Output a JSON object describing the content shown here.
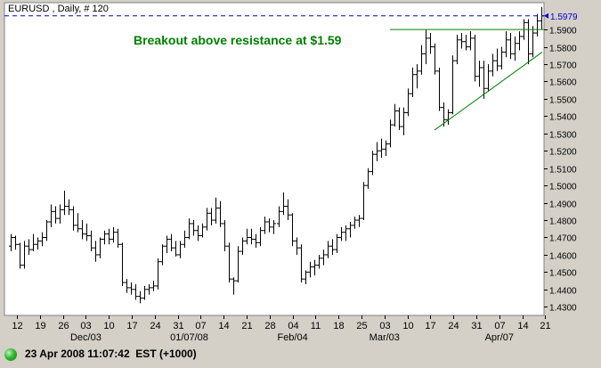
{
  "window_title": "EURUSD , Daily, # 120",
  "status_bar": {
    "text": "23 Apr 2008 11:07:42  EST (+1000)"
  },
  "colors": {
    "bar": "#000000",
    "resistance_line": "#008000",
    "trend_line": "#008000",
    "current_price_line": "#0000cc",
    "annotation": "#008000",
    "background": "#ffffff",
    "frame": "#d4d0c8"
  },
  "chart_data": {
    "type": "bar",
    "style": "ohlc",
    "title": "EURUSD , Daily, # 120",
    "ylim": [
      1.425,
      1.6055
    ],
    "y_ticks": [
      "1.4300",
      "1.4400",
      "1.4500",
      "1.4600",
      "1.4700",
      "1.4800",
      "1.4900",
      "1.5000",
      "1.5100",
      "1.5200",
      "1.5300",
      "1.5400",
      "1.5500",
      "1.5600",
      "1.5700",
      "1.5800",
      "1.5900"
    ],
    "current_price": "1.5979",
    "x_tick_labels": [
      "12",
      "19",
      "26",
      "03",
      "10",
      "17",
      "24",
      "31",
      "07",
      "14",
      "21",
      "28",
      "04",
      "11",
      "18",
      "25",
      "03",
      "10",
      "17",
      "24",
      "31",
      "07",
      "14",
      "21"
    ],
    "x_sub_labels": [
      {
        "label": "Dec/03",
        "tick": 3
      },
      {
        "label": "01/07/08",
        "tick": 7.5
      },
      {
        "label": "Feb/04",
        "tick": 12
      },
      {
        "label": "Mar/03",
        "tick": 16
      },
      {
        "label": "Apr/07",
        "tick": 21
      }
    ],
    "annotation": "Breakout above resistance at $1.59",
    "resistance_level": 1.59,
    "resistance_from_bar": 93,
    "trendline": {
      "from_bar": 95,
      "to_bar": 119,
      "from_price": 1.532,
      "to_price": 1.577
    },
    "ohlc": [
      [
        1.465,
        1.472,
        1.462,
        1.47
      ],
      [
        1.47,
        1.471,
        1.463,
        1.466
      ],
      [
        1.466,
        1.467,
        1.452,
        1.454
      ],
      [
        1.454,
        1.468,
        1.452,
        1.465
      ],
      [
        1.465,
        1.469,
        1.46,
        1.463
      ],
      [
        1.463,
        1.472,
        1.462,
        1.466
      ],
      [
        1.466,
        1.47,
        1.463,
        1.468
      ],
      [
        1.468,
        1.473,
        1.465,
        1.47
      ],
      [
        1.47,
        1.48,
        1.468,
        1.479
      ],
      [
        1.479,
        1.489,
        1.476,
        1.485
      ],
      [
        1.485,
        1.488,
        1.478,
        1.481
      ],
      [
        1.481,
        1.489,
        1.478,
        1.486
      ],
      [
        1.486,
        1.497,
        1.483,
        1.488
      ],
      [
        1.488,
        1.492,
        1.483,
        1.486
      ],
      [
        1.486,
        1.488,
        1.474,
        1.477
      ],
      [
        1.477,
        1.484,
        1.473,
        1.475
      ],
      [
        1.475,
        1.48,
        1.469,
        1.472
      ],
      [
        1.472,
        1.478,
        1.468,
        1.471
      ],
      [
        1.471,
        1.474,
        1.462,
        1.464
      ],
      [
        1.464,
        1.468,
        1.456,
        1.46
      ],
      [
        1.46,
        1.47,
        1.458,
        1.469
      ],
      [
        1.469,
        1.474,
        1.466,
        1.472
      ],
      [
        1.472,
        1.475,
        1.466,
        1.469
      ],
      [
        1.469,
        1.476,
        1.467,
        1.473
      ],
      [
        1.473,
        1.475,
        1.464,
        1.466
      ],
      [
        1.466,
        1.467,
        1.442,
        1.444
      ],
      [
        1.444,
        1.446,
        1.438,
        1.441
      ],
      [
        1.441,
        1.444,
        1.437,
        1.44
      ],
      [
        1.44,
        1.443,
        1.434,
        1.436
      ],
      [
        1.436,
        1.439,
        1.432,
        1.435
      ],
      [
        1.435,
        1.442,
        1.434,
        1.44
      ],
      [
        1.44,
        1.443,
        1.437,
        1.441
      ],
      [
        1.441,
        1.445,
        1.439,
        1.442
      ],
      [
        1.442,
        1.458,
        1.44,
        1.456
      ],
      [
        1.456,
        1.466,
        1.454,
        1.465
      ],
      [
        1.465,
        1.471,
        1.461,
        1.469
      ],
      [
        1.469,
        1.472,
        1.462,
        1.464
      ],
      [
        1.464,
        1.468,
        1.459,
        1.46
      ],
      [
        1.46,
        1.468,
        1.458,
        1.466
      ],
      [
        1.466,
        1.474,
        1.464,
        1.47
      ],
      [
        1.47,
        1.481,
        1.469,
        1.478
      ],
      [
        1.478,
        1.48,
        1.471,
        1.474
      ],
      [
        1.474,
        1.477,
        1.468,
        1.471
      ],
      [
        1.471,
        1.478,
        1.47,
        1.476
      ],
      [
        1.476,
        1.487,
        1.474,
        1.484
      ],
      [
        1.484,
        1.487,
        1.477,
        1.48
      ],
      [
        1.48,
        1.493,
        1.478,
        1.487
      ],
      [
        1.487,
        1.491,
        1.476,
        1.478
      ],
      [
        1.478,
        1.48,
        1.462,
        1.465
      ],
      [
        1.465,
        1.467,
        1.444,
        1.446
      ],
      [
        1.446,
        1.447,
        1.437,
        1.445
      ],
      [
        1.445,
        1.465,
        1.444,
        1.462
      ],
      [
        1.462,
        1.47,
        1.46,
        1.468
      ],
      [
        1.468,
        1.475,
        1.466,
        1.47
      ],
      [
        1.47,
        1.475,
        1.466,
        1.469
      ],
      [
        1.469,
        1.472,
        1.464,
        1.467
      ],
      [
        1.467,
        1.476,
        1.465,
        1.474
      ],
      [
        1.474,
        1.482,
        1.472,
        1.479
      ],
      [
        1.479,
        1.481,
        1.473,
        1.476
      ],
      [
        1.476,
        1.48,
        1.472,
        1.478
      ],
      [
        1.478,
        1.488,
        1.476,
        1.485
      ],
      [
        1.485,
        1.496,
        1.483,
        1.488
      ],
      [
        1.488,
        1.492,
        1.48,
        1.483
      ],
      [
        1.483,
        1.484,
        1.465,
        1.468
      ],
      [
        1.468,
        1.47,
        1.46,
        1.464
      ],
      [
        1.464,
        1.466,
        1.444,
        1.446
      ],
      [
        1.446,
        1.451,
        1.443,
        1.45
      ],
      [
        1.45,
        1.456,
        1.447,
        1.453
      ],
      [
        1.453,
        1.457,
        1.448,
        1.454
      ],
      [
        1.454,
        1.46,
        1.452,
        1.458
      ],
      [
        1.458,
        1.463,
        1.454,
        1.46
      ],
      [
        1.46,
        1.468,
        1.458,
        1.465
      ],
      [
        1.465,
        1.469,
        1.46,
        1.463
      ],
      [
        1.463,
        1.472,
        1.461,
        1.47
      ],
      [
        1.47,
        1.476,
        1.468,
        1.473
      ],
      [
        1.473,
        1.477,
        1.468,
        1.475
      ],
      [
        1.475,
        1.479,
        1.47,
        1.477
      ],
      [
        1.477,
        1.482,
        1.475,
        1.48
      ],
      [
        1.48,
        1.483,
        1.476,
        1.481
      ],
      [
        1.481,
        1.502,
        1.48,
        1.5
      ],
      [
        1.5,
        1.51,
        1.498,
        1.508
      ],
      [
        1.508,
        1.52,
        1.506,
        1.518
      ],
      [
        1.518,
        1.525,
        1.514,
        1.52
      ],
      [
        1.52,
        1.527,
        1.516,
        1.521
      ],
      [
        1.521,
        1.526,
        1.517,
        1.524
      ],
      [
        1.524,
        1.538,
        1.522,
        1.535
      ],
      [
        1.535,
        1.547,
        1.534,
        1.543
      ],
      [
        1.543,
        1.545,
        1.532,
        1.534
      ],
      [
        1.534,
        1.545,
        1.529,
        1.542
      ],
      [
        1.542,
        1.556,
        1.54,
        1.553
      ],
      [
        1.553,
        1.568,
        1.551,
        1.564
      ],
      [
        1.564,
        1.57,
        1.556,
        1.566
      ],
      [
        1.566,
        1.581,
        1.564,
        1.576
      ],
      [
        1.576,
        1.59,
        1.57,
        1.585
      ],
      [
        1.585,
        1.588,
        1.576,
        1.58
      ],
      [
        1.58,
        1.582,
        1.564,
        1.566
      ],
      [
        1.566,
        1.568,
        1.543,
        1.545
      ],
      [
        1.545,
        1.548,
        1.534,
        1.538
      ],
      [
        1.538,
        1.544,
        1.535,
        1.542
      ],
      [
        1.542,
        1.575,
        1.541,
        1.572
      ],
      [
        1.572,
        1.587,
        1.57,
        1.584
      ],
      [
        1.584,
        1.588,
        1.579,
        1.583
      ],
      [
        1.583,
        1.587,
        1.578,
        1.58
      ],
      [
        1.58,
        1.589,
        1.578,
        1.585
      ],
      [
        1.585,
        1.587,
        1.56,
        1.563
      ],
      [
        1.563,
        1.572,
        1.557,
        1.568
      ],
      [
        1.568,
        1.572,
        1.55,
        1.556
      ],
      [
        1.556,
        1.57,
        1.554,
        1.566
      ],
      [
        1.566,
        1.576,
        1.563,
        1.572
      ],
      [
        1.572,
        1.579,
        1.566,
        1.569
      ],
      [
        1.569,
        1.58,
        1.567,
        1.577
      ],
      [
        1.577,
        1.589,
        1.574,
        1.584
      ],
      [
        1.584,
        1.588,
        1.573,
        1.576
      ],
      [
        1.576,
        1.586,
        1.572,
        1.582
      ],
      [
        1.582,
        1.589,
        1.578,
        1.586
      ],
      [
        1.586,
        1.596,
        1.584,
        1.594
      ],
      [
        1.594,
        1.596,
        1.57,
        1.576
      ],
      [
        1.576,
        1.592,
        1.574,
        1.588
      ],
      [
        1.588,
        1.599,
        1.586,
        1.595
      ],
      [
        1.595,
        1.603,
        1.59,
        1.5979
      ]
    ]
  }
}
